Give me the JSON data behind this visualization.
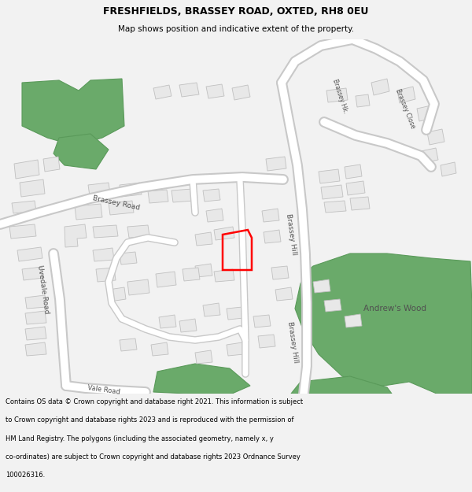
{
  "title": "FRESHFIELDS, BRASSEY ROAD, OXTED, RH8 0EU",
  "subtitle": "Map shows position and indicative extent of the property.",
  "footer_lines": [
    "Contains OS data © Crown copyright and database right 2021. This information is subject",
    "to Crown copyright and database rights 2023 and is reproduced with the permission of",
    "HM Land Registry. The polygons (including the associated geometry, namely x, y",
    "co-ordinates) are subject to Crown copyright and database rights 2023 Ordnance Survey",
    "100026316."
  ],
  "bg_color": "#f2f2f2",
  "map_bg": "#ffffff",
  "building_color": "#e8e8e8",
  "building_edge_color": "#c0c0c0",
  "green_color": "#6aaa6a",
  "green_edge_color": "#5a9a5a",
  "highlight_color": "#ff0000",
  "road_label_color": "#505050",
  "road_fill": "#ffffff",
  "road_edge": "#c8c8c8"
}
